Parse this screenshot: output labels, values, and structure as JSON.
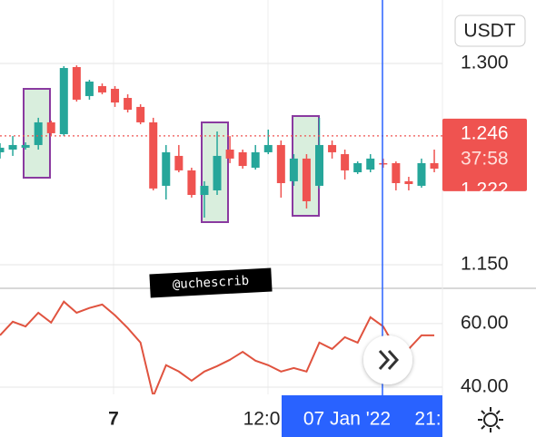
{
  "chart_data": {
    "type": "candlestick",
    "open": [
      1.2338,
      1.2358,
      1.2372,
      1.2392,
      1.2561,
      1.2473,
      1.2973,
      1.2757,
      1.2831,
      1.2811,
      1.2743,
      1.2676,
      1.2561,
      1.2088,
      1.2311,
      1.2203,
      1.202,
      1.2054,
      1.2358,
      1.2338,
      1.2223,
      1.2338,
      1.2392,
      1.2122,
      1.2291,
      1.2088,
      1.2392,
      1.2324,
      1.2189,
      1.2209,
      1.2257,
      1.2257,
      1.2122,
      1.2088,
      1.2257
    ],
    "high": [
      1.2405,
      1.2459,
      1.2412,
      1.2595,
      1.2574,
      1.298,
      1.2986,
      1.2878,
      1.2851,
      1.2831,
      1.277,
      1.2696,
      1.2595,
      1.2392,
      1.2392,
      1.2223,
      1.2122,
      1.2493,
      1.2459,
      1.2358,
      1.2392,
      1.2507,
      1.2426,
      1.2324,
      1.2324,
      1.2595,
      1.2426,
      1.2358,
      1.227,
      1.2324,
      1.2291,
      1.227,
      1.2155,
      1.2291,
      1.2358
    ],
    "low": [
      1.2291,
      1.2311,
      1.2358,
      1.2358,
      1.2459,
      1.2459,
      1.2716,
      1.273,
      1.277,
      1.2676,
      1.2635,
      1.2547,
      1.2054,
      1.1986,
      1.2189,
      1.2,
      1.1851,
      1.202,
      1.2257,
      1.2216,
      1.2209,
      1.2324,
      1.2,
      1.2088,
      1.1919,
      1.2068,
      1.2291,
      1.2135,
      1.2176,
      1.2189,
      1.2223,
      1.2054,
      1.2054,
      1.2074,
      1.2189
    ],
    "close": [
      1.2372,
      1.2392,
      1.2392,
      1.2561,
      1.248,
      1.2966,
      1.273,
      1.2865,
      1.2784,
      1.2709,
      1.2655,
      1.2561,
      1.2068,
      1.2338,
      1.2203,
      1.202,
      1.2088,
      1.2311,
      1.2291,
      1.2236,
      1.2338,
      1.2392,
      1.2108,
      1.2291,
      1.1973,
      1.2392,
      1.2338,
      1.2203,
      1.2257,
      1.2291,
      1.225,
      1.2108,
      1.2101,
      1.2257,
      1.2216
    ],
    "up_color": "#26a69a",
    "down_color": "#ef5350",
    "ylim": [
      1.1324,
      1.3473
    ],
    "yticks": [
      {
        "value": 1.3,
        "label": "1.300"
      },
      {
        "value": 1.15,
        "label": "1.150"
      }
    ],
    "quote_currency": "USDT",
    "last_price": {
      "value": 1.246,
      "label": "1.246"
    },
    "countdown": "37:58",
    "price_marker": {
      "value": 1.222,
      "label": "1.222"
    },
    "x_labels": [
      "7",
      "12:0",
      "21:"
    ],
    "crosshair_label": "07 Jan '22",
    "watermark": "@uchescrib",
    "indicator": {
      "type": "line",
      "color": "#e0533f",
      "values": [
        56.3,
        60.6,
        59.1,
        63.4,
        60.3,
        66.9,
        63.4,
        64.9,
        66.0,
        62.6,
        58.6,
        54.0,
        37.1,
        46.9,
        44.9,
        42.0,
        44.9,
        46.6,
        48.6,
        51.1,
        48.3,
        46.9,
        44.9,
        46.0,
        44.9,
        54.0,
        52.0,
        55.7,
        54.0,
        62.0,
        59.1,
        52.0,
        52.0,
        56.3,
        56.3
      ],
      "ylim": [
        37.7,
        71.1
      ],
      "yticks": [
        {
          "value": 60,
          "label": "60.00"
        },
        {
          "value": 40,
          "label": "40.00"
        }
      ]
    }
  }
}
